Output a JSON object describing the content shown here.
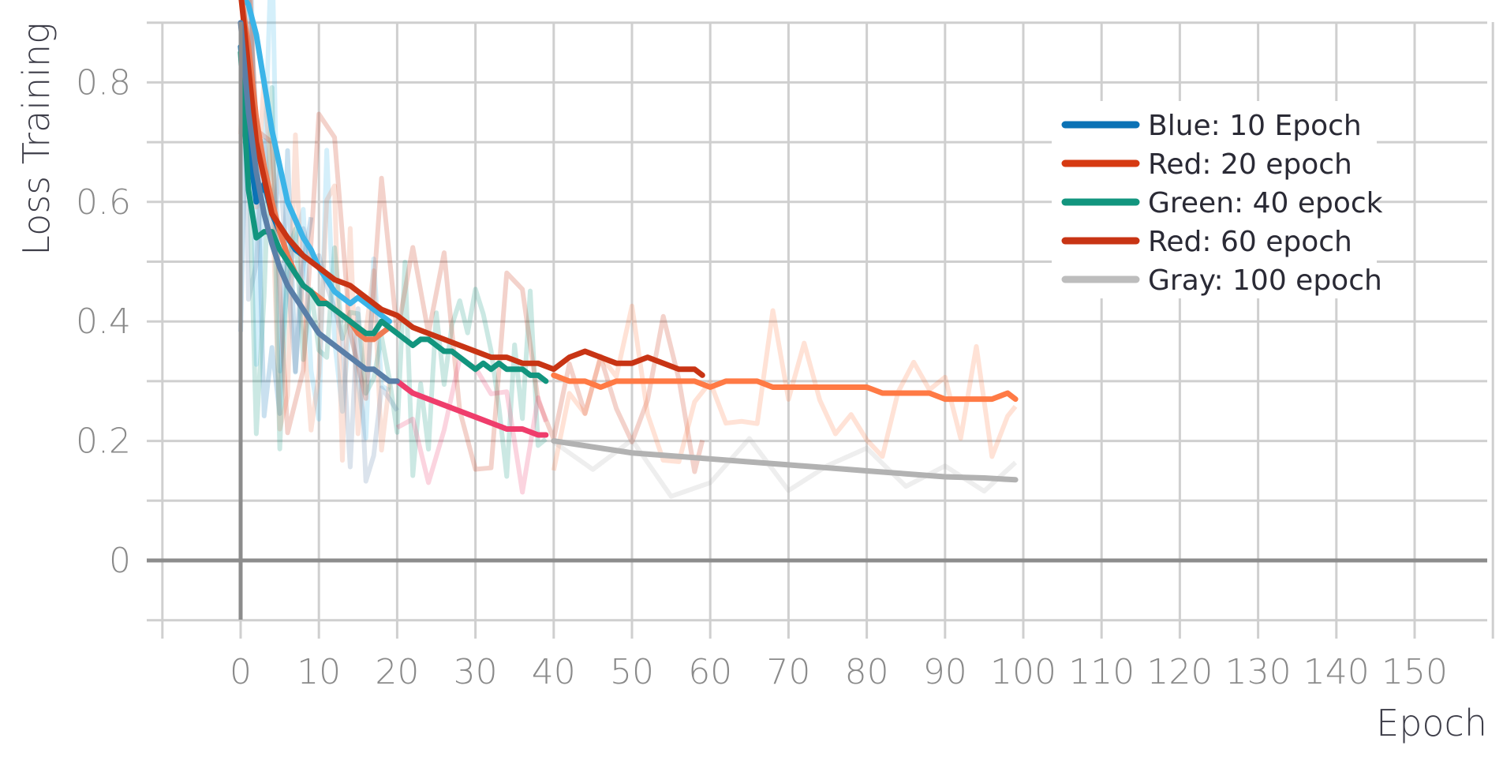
{
  "chart_data": {
    "type": "line",
    "title": "",
    "xlabel": "Epoch",
    "ylabel": "Loss Training",
    "xlim": [
      -10,
      160
    ],
    "ylim": [
      -0.1,
      0.9
    ],
    "x_ticks": [
      0,
      10,
      20,
      30,
      40,
      50,
      60,
      70,
      80,
      90,
      100,
      110,
      120,
      130,
      140,
      150
    ],
    "y_ticks": [
      0,
      0.2,
      0.4,
      0.6,
      0.8
    ],
    "y_tick_labels": [
      "0",
      "0.2",
      "0.4",
      "0.6",
      "0.8"
    ],
    "grid": true,
    "legend_position": "top-right",
    "legend": [
      {
        "label": "Blue: 10 Epoch",
        "color": "#0b72b5"
      },
      {
        "label": "Red: 20 epoch",
        "color": "#d63a12"
      },
      {
        "label": "Green: 40 epock",
        "color": "#12957e"
      },
      {
        "label": "Red: 60 epoch",
        "color": "#c83414"
      },
      {
        "label": "Gray: 100 epoch",
        "color": "#bdbdbd"
      }
    ],
    "series": [
      {
        "color": "#3bb4e8",
        "style": "smoothed",
        "x": [
          0,
          1,
          2,
          3,
          4,
          5,
          6,
          7,
          8,
          9,
          10,
          11,
          12,
          13,
          14,
          15,
          16,
          17,
          18,
          19
        ],
        "y": [
          0.95,
          0.93,
          0.88,
          0.8,
          0.72,
          0.66,
          0.6,
          0.57,
          0.54,
          0.52,
          0.49,
          0.47,
          0.45,
          0.44,
          0.43,
          0.44,
          0.43,
          0.42,
          0.41,
          0.4
        ]
      },
      {
        "color": "#0b72b5",
        "style": "smoothed",
        "x": [
          0,
          1,
          2,
          3,
          4,
          5,
          6,
          7,
          8,
          9
        ],
        "y": [
          0.86,
          0.7,
          0.6,
          0.63,
          0.58,
          0.55,
          0.54,
          0.52,
          0.51,
          0.5
        ]
      },
      {
        "color": "#ee7a53",
        "style": "smoothed",
        "x": [
          0,
          1,
          2,
          3,
          4,
          5,
          6,
          7,
          8,
          9,
          10,
          11,
          12,
          13,
          14,
          15,
          16,
          17,
          18,
          19
        ],
        "y": [
          0.95,
          0.86,
          0.74,
          0.66,
          0.6,
          0.55,
          0.51,
          0.48,
          0.46,
          0.45,
          0.44,
          0.43,
          0.42,
          0.41,
          0.4,
          0.38,
          0.37,
          0.37,
          0.38,
          0.39
        ]
      },
      {
        "color": "#12957e",
        "style": "smoothed",
        "x": [
          0,
          1,
          2,
          3,
          4,
          5,
          6,
          7,
          8,
          9,
          10,
          11,
          12,
          13,
          14,
          15,
          16,
          17,
          18,
          19,
          20,
          21,
          22,
          23,
          24,
          25,
          26,
          27,
          28,
          29,
          30,
          31,
          32,
          33,
          34,
          35,
          36,
          37,
          38,
          39
        ],
        "y": [
          0.85,
          0.62,
          0.54,
          0.55,
          0.55,
          0.52,
          0.5,
          0.48,
          0.46,
          0.45,
          0.43,
          0.43,
          0.42,
          0.41,
          0.4,
          0.39,
          0.38,
          0.38,
          0.4,
          0.39,
          0.38,
          0.37,
          0.36,
          0.37,
          0.37,
          0.36,
          0.35,
          0.35,
          0.34,
          0.33,
          0.32,
          0.33,
          0.32,
          0.33,
          0.32,
          0.32,
          0.32,
          0.31,
          0.31,
          0.3
        ]
      },
      {
        "color": "#c83414",
        "style": "smoothed",
        "x": [
          0,
          2,
          4,
          6,
          8,
          10,
          12,
          14,
          16,
          18,
          20,
          22,
          24,
          26,
          28,
          30,
          32,
          34,
          36,
          38,
          40,
          42,
          44,
          46,
          48,
          50,
          52,
          54,
          56,
          58,
          59
        ],
        "y": [
          0.95,
          0.7,
          0.58,
          0.54,
          0.51,
          0.49,
          0.47,
          0.46,
          0.44,
          0.42,
          0.41,
          0.39,
          0.38,
          0.37,
          0.36,
          0.35,
          0.34,
          0.34,
          0.33,
          0.33,
          0.32,
          0.34,
          0.35,
          0.34,
          0.33,
          0.33,
          0.34,
          0.33,
          0.32,
          0.32,
          0.31
        ]
      },
      {
        "color": "#ff7a45",
        "style": "smoothed",
        "x": [
          40,
          42,
          44,
          46,
          48,
          50,
          52,
          54,
          56,
          58,
          60,
          62,
          64,
          66,
          68,
          70,
          72,
          74,
          76,
          78,
          80,
          82,
          84,
          86,
          88,
          90,
          92,
          94,
          96,
          98,
          99
        ],
        "y": [
          0.31,
          0.3,
          0.3,
          0.29,
          0.3,
          0.3,
          0.3,
          0.3,
          0.3,
          0.3,
          0.29,
          0.3,
          0.3,
          0.3,
          0.29,
          0.29,
          0.29,
          0.29,
          0.29,
          0.29,
          0.29,
          0.28,
          0.28,
          0.28,
          0.28,
          0.27,
          0.27,
          0.27,
          0.27,
          0.28,
          0.27
        ]
      },
      {
        "color": "#ef3d6c",
        "style": "smoothed",
        "x": [
          20,
          22,
          24,
          26,
          28,
          30,
          32,
          34,
          36,
          38,
          39
        ],
        "y": [
          0.3,
          0.28,
          0.27,
          0.26,
          0.25,
          0.24,
          0.23,
          0.22,
          0.22,
          0.21,
          0.21
        ]
      },
      {
        "color": "#b2b2b2",
        "style": "smoothed",
        "x": [
          40,
          45,
          50,
          55,
          60,
          65,
          70,
          75,
          80,
          85,
          90,
          95,
          99
        ],
        "y": [
          0.2,
          0.19,
          0.18,
          0.175,
          0.17,
          0.165,
          0.16,
          0.155,
          0.15,
          0.145,
          0.14,
          0.138,
          0.135
        ]
      },
      {
        "color": "#5a7fa8",
        "style": "smoothed",
        "x": [
          0,
          1,
          2,
          3,
          4,
          5,
          6,
          7,
          8,
          9,
          10,
          11,
          12,
          13,
          14,
          15,
          16,
          17,
          18,
          19,
          20
        ],
        "y": [
          0.9,
          0.75,
          0.65,
          0.58,
          0.53,
          0.49,
          0.46,
          0.44,
          0.42,
          0.4,
          0.38,
          0.37,
          0.36,
          0.35,
          0.34,
          0.33,
          0.32,
          0.32,
          0.31,
          0.3,
          0.3
        ]
      }
    ]
  }
}
